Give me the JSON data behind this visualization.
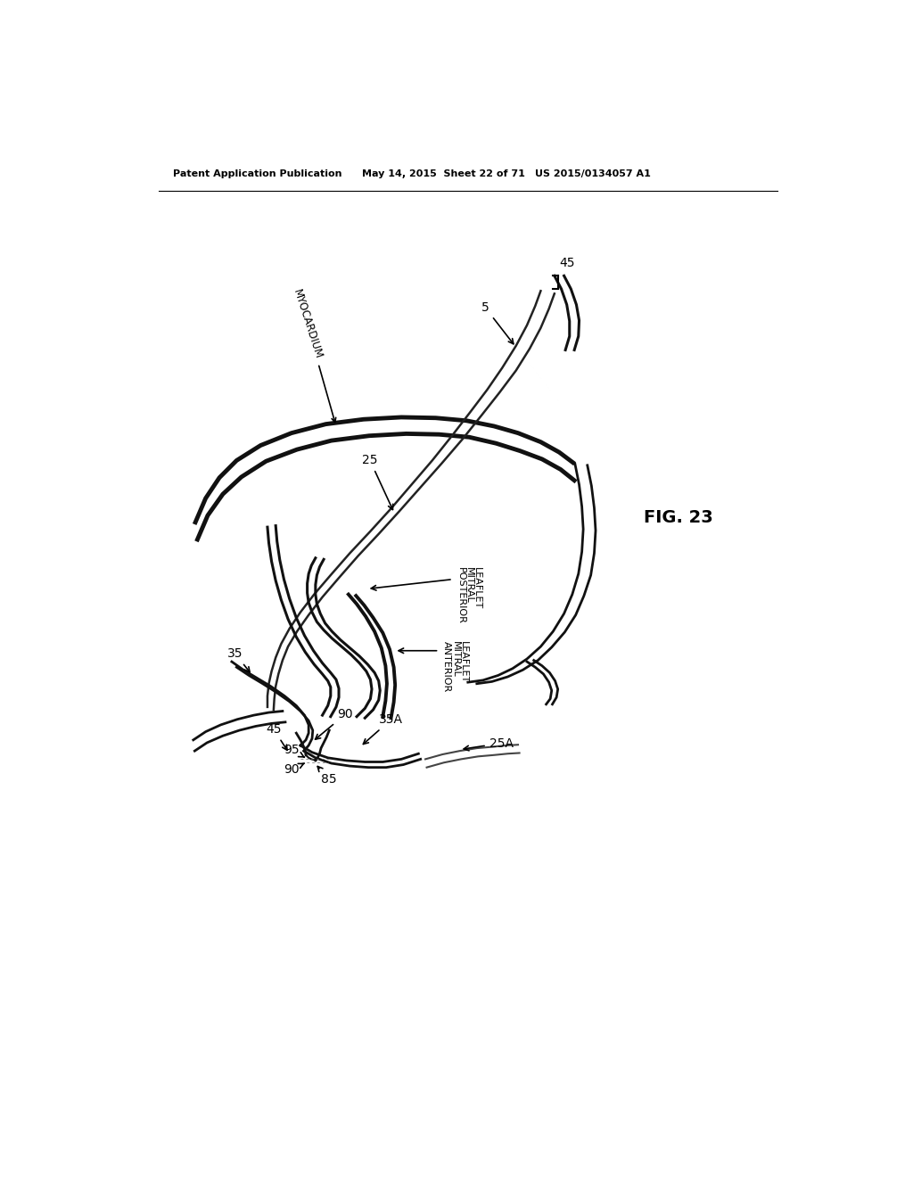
{
  "title": "FIG. 23",
  "patent_header_left": "Patent Application Publication",
  "patent_header_mid": "May 14, 2015  Sheet 22 of 71",
  "patent_header_right": "US 2015/0134057 A1",
  "bg_color": "#ffffff",
  "text_color": "#000000",
  "line_color": "#1a1a1a"
}
